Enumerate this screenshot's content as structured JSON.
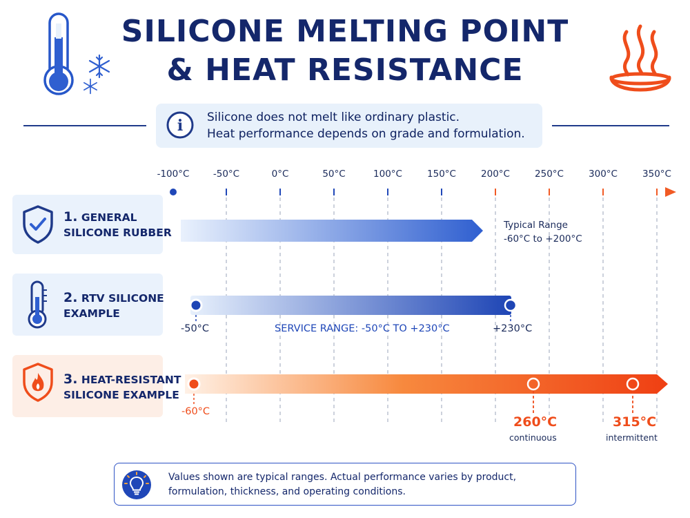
{
  "title": {
    "line1": "SILICONE MELTING POINT",
    "line2": "& HEAT RESISTANCE"
  },
  "info": {
    "line1": "Silicone does not melt like ordinary plastic.",
    "line2": "Heat performance depends on grade and formulation."
  },
  "axis": {
    "ticks": [
      "-100°C",
      "-50°C",
      "0°C",
      "50°C",
      "100°C",
      "150°C",
      "200°C",
      "250°C",
      "300°C",
      "350°C"
    ]
  },
  "rows": [
    {
      "number": "1.",
      "line1": "GENERAL",
      "line2": "SILICONE RUBBER",
      "icon": "shield-check-icon"
    },
    {
      "number": "2.",
      "line1": "RTV SILICONE",
      "line2": "EXAMPLE",
      "icon": "thermometer-icon"
    },
    {
      "number": "3.",
      "line1": "HEAT-RESISTANT",
      "line2": "SILICONE EXAMPLE",
      "icon": "flame-shield-icon"
    }
  ],
  "bar1": {
    "note_title": "Typical Range",
    "note_value": "-60°C to +200°C"
  },
  "bar2": {
    "start_label": "-50°C",
    "center_label": "SERVICE RANGE: -50°C TO +230°C",
    "end_label": "+230°C"
  },
  "bar3": {
    "start_label": "-60°C",
    "mark1_value": "260°C",
    "mark1_caption": "continuous",
    "mark2_value": "315°C",
    "mark2_caption": "intermittent"
  },
  "note": {
    "line1": "Values shown are typical ranges. Actual performance varies by product,",
    "line2": "formulation, thickness, and operating conditions."
  },
  "colors": {
    "navy": "#14276b",
    "blue": "#2f5fd0",
    "orange": "#ef4d1b"
  }
}
